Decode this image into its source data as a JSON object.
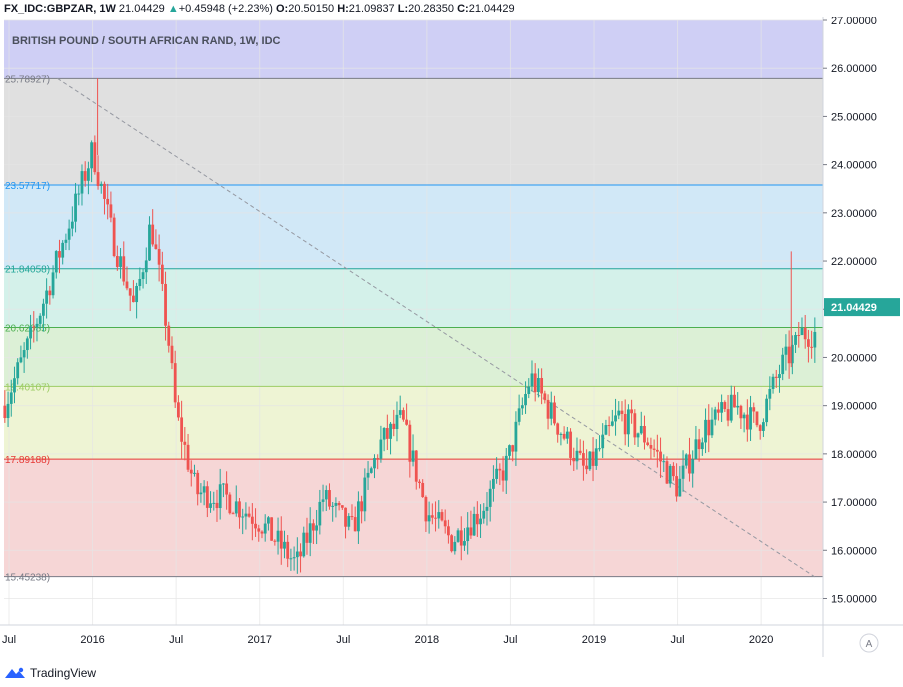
{
  "header": {
    "symbol": "FX_IDC:GBPZAR, 1W",
    "last": "21.04429",
    "up_arrow": "▲",
    "change": "+0.45948 (+2.23%)",
    "o_label": "O:",
    "o_value": "20.50150",
    "h_label": "H:",
    "h_value": "21.09837",
    "l_label": "L:",
    "l_value": "20.28350",
    "c_label": "C:",
    "c_value": "21.04429"
  },
  "footer": {
    "brand": "TradingView",
    "logo_icon": "tradingview-logo-icon"
  },
  "chart_data": {
    "type": "candlestick",
    "title": "BRITISH POUND / SOUTH AFRICAN RAND, 1W, IDC",
    "ylim": [
      14.45,
      27.0
    ],
    "yticks": [
      "15.00000",
      "16.00000",
      "17.00000",
      "18.00000",
      "19.00000",
      "20.00000",
      "21.00000",
      "22.00000",
      "23.00000",
      "24.00000",
      "25.00000",
      "26.00000",
      "27.00000"
    ],
    "last_price_label": "21.04429",
    "xticks": [
      {
        "label": "Jul",
        "t": 2015.5
      },
      {
        "label": "2016",
        "t": 2016.0
      },
      {
        "label": "Jul",
        "t": 2016.5
      },
      {
        "label": "2017",
        "t": 2017.0
      },
      {
        "label": "Jul",
        "t": 2017.5
      },
      {
        "label": "2018",
        "t": 2018.0
      },
      {
        "label": "Jul",
        "t": 2018.5
      },
      {
        "label": "2019",
        "t": 2019.0
      },
      {
        "label": "Jul",
        "t": 2019.5
      },
      {
        "label": "2020",
        "t": 2020.0
      }
    ],
    "xlim": [
      2015.47,
      2020.37
    ],
    "fib_levels": [
      {
        "label": "25.78927)",
        "value": 25.78927,
        "line": "#787b86",
        "fill": "#e0e0e0"
      },
      {
        "label": "23.57717)",
        "value": 23.57717,
        "line": "#2196f3",
        "fill": "#d1e8f7"
      },
      {
        "label": "21.84058)",
        "value": 21.84058,
        "line": "#26a69a",
        "fill": "#d4f1ea"
      },
      {
        "label": "20.62085)",
        "value": 20.62085,
        "line": "#4caf50",
        "fill": "#dcf0d6"
      },
      {
        "label": "19.40107)",
        "value": 19.40107,
        "line": "#9ccc65",
        "fill": "#eef4d4"
      },
      {
        "label": "17.89188)",
        "value": 17.89188,
        "line": "#e53935",
        "fill": "#f6d6d6"
      },
      {
        "label": "15.45238)",
        "value": 15.45238,
        "line": "#787b86",
        "fill": "#ffffff"
      }
    ],
    "top_fill": "#cfcff5",
    "trend_line": {
      "start": {
        "t": 2015.79,
        "v": 25.79
      },
      "end": {
        "t": 2020.32,
        "v": 15.45
      }
    },
    "anchors": [
      {
        "t": 2015.47,
        "v": 19.0
      },
      {
        "t": 2015.62,
        "v": 20.3
      },
      {
        "t": 2015.72,
        "v": 21.3
      },
      {
        "t": 2015.9,
        "v": 23.2
      },
      {
        "t": 2016.0,
        "v": 24.3
      },
      {
        "t": 2016.12,
        "v": 22.5
      },
      {
        "t": 2016.25,
        "v": 21.0
      },
      {
        "t": 2016.35,
        "v": 22.8
      },
      {
        "t": 2016.45,
        "v": 20.5
      },
      {
        "t": 2016.5,
        "v": 18.8
      },
      {
        "t": 2016.62,
        "v": 17.2
      },
      {
        "t": 2016.8,
        "v": 17.1
      },
      {
        "t": 2017.0,
        "v": 16.6
      },
      {
        "t": 2017.22,
        "v": 15.7
      },
      {
        "t": 2017.38,
        "v": 17.1
      },
      {
        "t": 2017.55,
        "v": 16.4
      },
      {
        "t": 2017.72,
        "v": 18.2
      },
      {
        "t": 2017.85,
        "v": 18.7
      },
      {
        "t": 2018.0,
        "v": 16.8
      },
      {
        "t": 2018.15,
        "v": 16.2
      },
      {
        "t": 2018.32,
        "v": 16.8
      },
      {
        "t": 2018.48,
        "v": 17.8
      },
      {
        "t": 2018.62,
        "v": 19.6
      },
      {
        "t": 2018.8,
        "v": 18.5
      },
      {
        "t": 2018.95,
        "v": 17.6
      },
      {
        "t": 2019.15,
        "v": 18.8
      },
      {
        "t": 2019.32,
        "v": 18.3
      },
      {
        "t": 2019.5,
        "v": 17.3
      },
      {
        "t": 2019.65,
        "v": 18.5
      },
      {
        "t": 2019.85,
        "v": 19.0
      },
      {
        "t": 2019.98,
        "v": 18.6
      },
      {
        "t": 2020.12,
        "v": 19.8
      },
      {
        "t": 2020.22,
        "v": 20.3
      },
      {
        "t": 2020.22,
        "v": 20.5
      }
    ]
  }
}
